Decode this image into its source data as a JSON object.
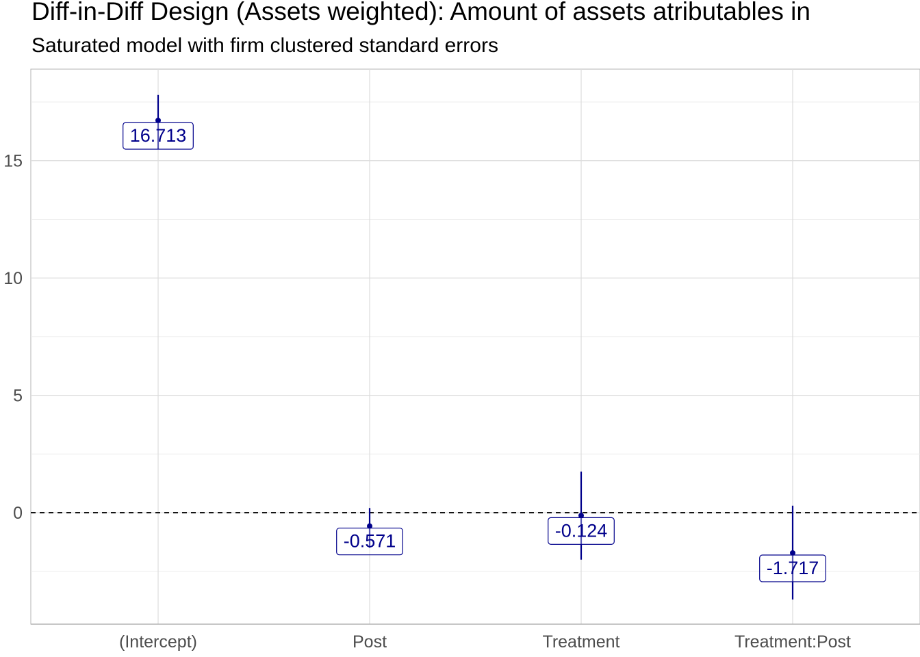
{
  "chart_data": {
    "type": "scatter",
    "title": "Diff-in-Diff Design (Assets weighted): Amount of assets atributables in",
    "subtitle": "Saturated model with firm clustered standard errors",
    "xlabel": "",
    "ylabel": "",
    "categories": [
      "(Intercept)",
      "Post",
      "Treatment",
      "Treatment:Post"
    ],
    "series": [
      {
        "values": [
          16.713,
          -0.571,
          -0.124,
          -1.717
        ],
        "ci_low": [
          15.5,
          -1.5,
          -2.0,
          -3.7
        ],
        "ci_high": [
          17.8,
          0.2,
          1.75,
          0.3
        ],
        "labels": [
          "16.713",
          "-0.571",
          "-0.124",
          "-1.717"
        ]
      }
    ],
    "reference_line": 0,
    "y_ticks": [
      0,
      5,
      10,
      15
    ],
    "y_tick_labels": [
      "0",
      "5",
      "10",
      "15"
    ],
    "ylim": [
      -4.75,
      18.9
    ],
    "grid": true,
    "colors": {
      "point": "#00008b",
      "grid": "#dcdcdc",
      "axis": "#b3b3b3",
      "reference": "#000000"
    }
  }
}
